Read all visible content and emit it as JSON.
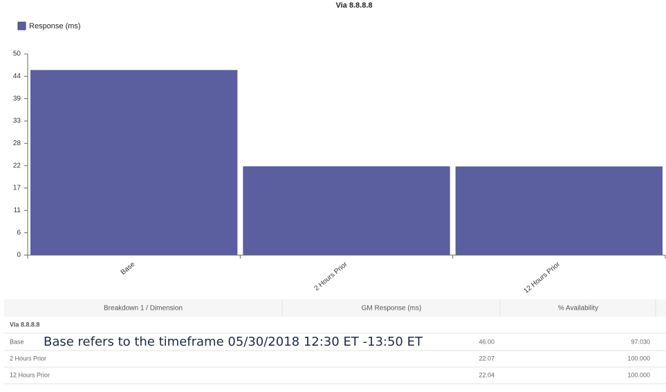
{
  "chart_data": {
    "type": "bar",
    "title": "Via 8.8.8.8",
    "categories": [
      "Base",
      "2 Hours Prior",
      "12 Hours Prior"
    ],
    "series": [
      {
        "name": "Response (ms)",
        "color": "#5b5e9f",
        "values": [
          46.0,
          22.07,
          22.04
        ]
      }
    ],
    "ylim": [
      0,
      50
    ],
    "yticks": [
      0,
      {
        "value": 5.556,
        "label": "6"
      },
      {
        "value": 11.111,
        "label": "11"
      },
      {
        "value": 16.667,
        "label": "17"
      },
      {
        "value": 22.222,
        "label": "22"
      },
      {
        "value": 27.778,
        "label": "28"
      },
      {
        "value": 33.333,
        "label": "33"
      },
      {
        "value": 38.889,
        "label": "39"
      },
      {
        "value": 44.444,
        "label": "44"
      },
      50
    ],
    "grid": false
  },
  "table": {
    "columns": [
      "Breakdown 1 / Dimension",
      "GM Response (ms)",
      "% Availability"
    ],
    "group": "Via 8.8.8.8",
    "rows": [
      [
        "Base",
        "46.00",
        "97.030"
      ],
      [
        "2 Hours Prior",
        "22.07",
        "100.000"
      ],
      [
        "12 Hours Prior",
        "22.04",
        "100.000"
      ]
    ]
  },
  "annotation": "Base refers to the timeframe 05/30/2018 12:30 ET -13:50 ET"
}
